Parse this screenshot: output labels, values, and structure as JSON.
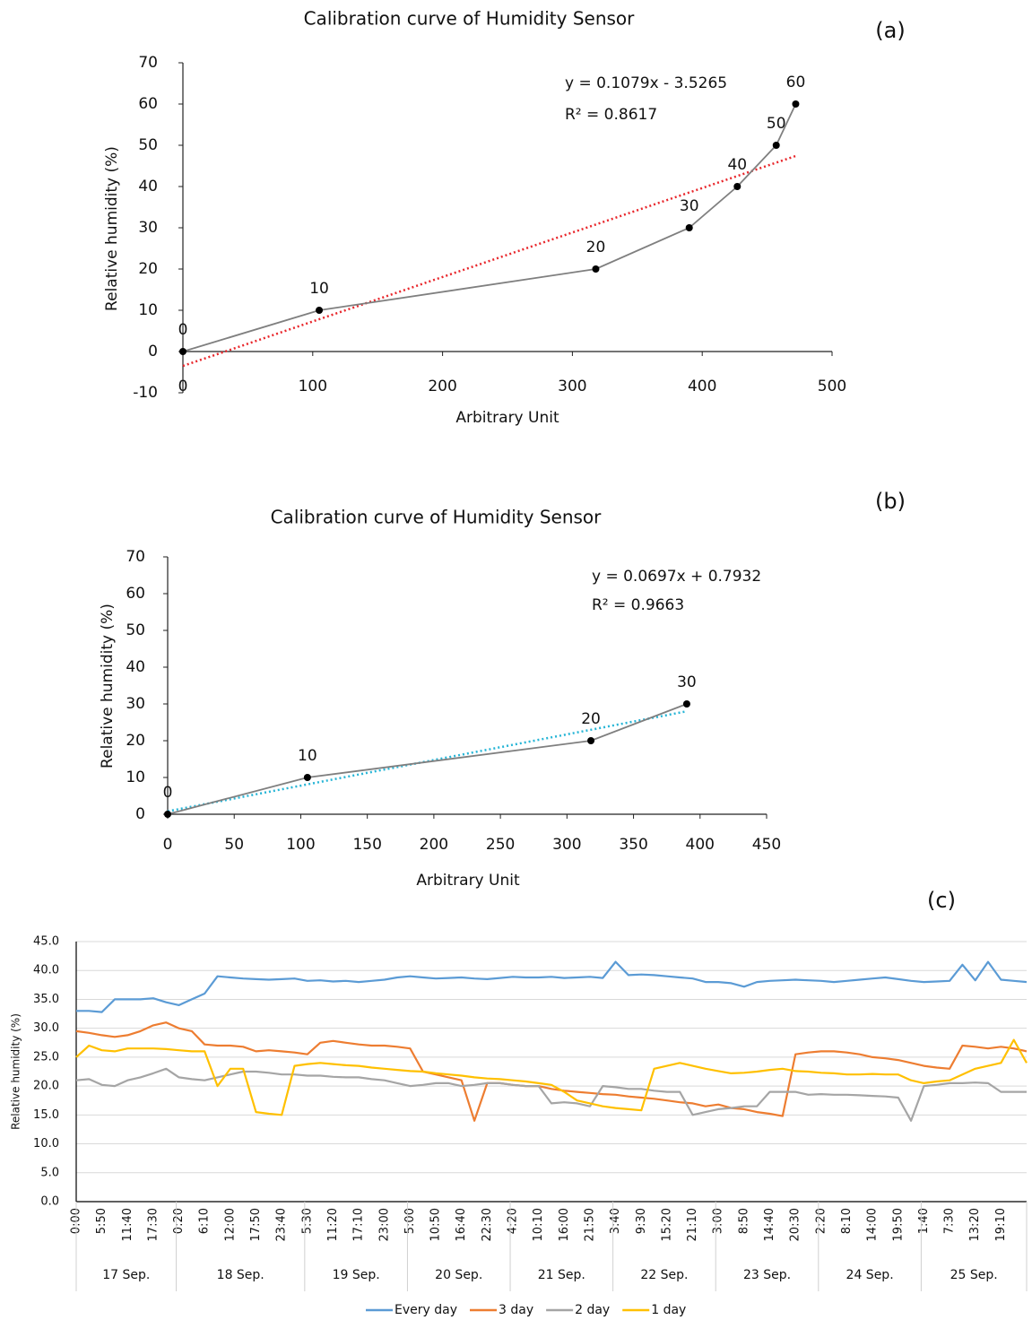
{
  "chart_data": [
    {
      "type": "scatter",
      "title": "Calibration curve of Humidity Sensor",
      "panel_label": "(a)",
      "x_label": "Arbitrary Unit",
      "y_label": "Relative humidity  (%)",
      "annotations": [
        "y = 0.1079x - 3.5265",
        "R² = 0.8617"
      ],
      "x": [
        0,
        105,
        318,
        390,
        427,
        457,
        472
      ],
      "values": [
        0,
        10,
        20,
        30,
        40,
        50,
        60
      ],
      "color": "#7f7f7f",
      "marker_color": "#000000",
      "trendline": {
        "x": [
          0,
          472
        ],
        "values": [
          -3.5,
          47.4
        ],
        "color": "#e8262b"
      },
      "xlim": [
        0,
        500
      ],
      "xticks": [
        0,
        100,
        200,
        300,
        400,
        500
      ],
      "ylim": [
        -10,
        70
      ],
      "yticks": [
        -10,
        0,
        10,
        20,
        30,
        40,
        50,
        60,
        70
      ]
    },
    {
      "type": "scatter",
      "title": "Calibration curve of Humidity Sensor",
      "panel_label": "(b)",
      "x_label": "Arbitrary Unit",
      "y_label": "Relative humidity  (%)",
      "annotations": [
        "y = 0.0697x + 0.7932",
        "R² = 0.9663"
      ],
      "x": [
        0,
        105,
        318,
        390
      ],
      "values": [
        0,
        10,
        20,
        30
      ],
      "color": "#7f7f7f",
      "marker_color": "#000000",
      "trendline": {
        "x": [
          0,
          390
        ],
        "values": [
          0.8,
          28
        ],
        "color": "#27b5d6"
      },
      "xlim": [
        0,
        450
      ],
      "xticks": [
        0,
        50,
        100,
        150,
        200,
        250,
        300,
        350,
        400,
        450
      ],
      "ylim": [
        0,
        70
      ],
      "yticks": [
        0,
        10,
        20,
        30,
        40,
        50,
        60,
        70
      ]
    },
    {
      "type": "line",
      "panel_label": "(c)",
      "y_label": "Relative humidity (%)",
      "categories": [
        "0:00",
        null,
        "5:50",
        null,
        "11:40",
        null,
        "17:30",
        null,
        "0:20",
        null,
        "6:10",
        null,
        "12:00",
        null,
        "17:50",
        null,
        "23:40",
        null,
        "5:30",
        null,
        "11:20",
        null,
        "17:10",
        null,
        "23:00",
        null,
        "5:00",
        null,
        "10:50",
        null,
        "16:40",
        null,
        "22:30",
        null,
        "4:20",
        null,
        "10:10",
        null,
        "16:00",
        null,
        "21:50",
        null,
        "3:40",
        null,
        "9:30",
        null,
        "15:20",
        null,
        "21:10",
        null,
        "3:00",
        null,
        "8:50",
        null,
        "14:40",
        null,
        "20:30",
        null,
        "2:20",
        null,
        "8:10",
        null,
        "14:00",
        null,
        "19:50",
        null,
        "1:40",
        null,
        "7:30",
        null,
        "13:20",
        null,
        "19:10",
        null,
        null
      ],
      "groups": [
        "17 Sep.",
        "18 Sep.",
        "19 Sep.",
        "20 Sep.",
        "21 Sep.",
        "22 Sep.",
        "23 Sep.",
        "24 Sep.",
        "25 Sep."
      ],
      "series": [
        {
          "name": "Every day",
          "color": "#5b9bd5",
          "values": [
            33,
            33,
            32.8,
            35,
            35,
            35,
            35.2,
            34.5,
            34,
            35,
            36,
            39,
            38.8,
            38.6,
            38.5,
            38.4,
            38.5,
            38.6,
            38.2,
            38.3,
            38.1,
            38.2,
            38,
            38.2,
            38.4,
            38.8,
            39,
            38.8,
            38.6,
            38.7,
            38.8,
            38.6,
            38.5,
            38.7,
            38.9,
            38.8,
            38.8,
            38.9,
            38.7,
            38.8,
            38.9,
            38.7,
            41.5,
            39.2,
            39.3,
            39.2,
            39,
            38.8,
            38.6,
            38,
            38,
            37.8,
            37.2,
            38,
            38.2,
            38.3,
            38.4,
            38.3,
            38.2,
            38,
            38.2,
            38.4,
            38.6,
            38.8,
            38.5,
            38.2,
            38,
            38.1,
            38.2,
            41,
            38.3,
            41.5,
            38.4,
            38.2,
            38
          ]
        },
        {
          "name": "3 day",
          "color": "#ed7d31",
          "values": [
            29.5,
            29.2,
            28.8,
            28.5,
            28.8,
            29.5,
            30.5,
            31,
            30,
            29.5,
            27.2,
            27,
            27,
            26.8,
            26,
            26.2,
            26,
            25.8,
            25.5,
            27.5,
            27.8,
            27.5,
            27.2,
            27,
            27,
            26.8,
            26.5,
            22.5,
            22,
            21.5,
            21,
            14,
            20.5,
            20.5,
            20.2,
            20,
            20,
            19.5,
            19.2,
            19,
            18.8,
            18.6,
            18.5,
            18.2,
            18,
            17.8,
            17.5,
            17.2,
            17,
            16.5,
            16.8,
            16.2,
            16,
            15.5,
            15.2,
            14.8,
            25.5,
            25.8,
            26,
            26,
            25.8,
            25.5,
            25,
            24.8,
            24.5,
            24,
            23.5,
            23.2,
            23,
            27,
            26.8,
            26.5,
            26.8,
            26.5,
            26
          ]
        },
        {
          "name": "2 day",
          "color": "#a5a5a5",
          "values": [
            21,
            21.2,
            20.2,
            20,
            21,
            21.5,
            22.2,
            23,
            21.5,
            21.2,
            21,
            21.5,
            22,
            22.5,
            22.5,
            22.3,
            22,
            22,
            21.8,
            21.8,
            21.6,
            21.5,
            21.5,
            21.2,
            21,
            20.5,
            20,
            20.2,
            20.5,
            20.5,
            20,
            20.2,
            20.5,
            20.5,
            20.2,
            20,
            20,
            17,
            17.2,
            17,
            16.5,
            20,
            19.8,
            19.5,
            19.5,
            19.2,
            19,
            19,
            15,
            15.5,
            16,
            16.2,
            16.5,
            16.5,
            19,
            19,
            19,
            18.5,
            18.6,
            18.5,
            18.5,
            18.4,
            18.3,
            18.2,
            18,
            14,
            20,
            20.2,
            20.5,
            20.5,
            20.6,
            20.5,
            19,
            19,
            19
          ]
        },
        {
          "name": "1 day",
          "color": "#ffc000",
          "values": [
            25,
            27,
            26.2,
            26,
            26.5,
            26.5,
            26.5,
            26.4,
            26.2,
            26,
            26,
            20,
            23,
            23,
            15.5,
            15.2,
            15,
            23.5,
            23.8,
            24,
            23.8,
            23.6,
            23.5,
            23.2,
            23,
            22.8,
            22.6,
            22.5,
            22.2,
            22,
            21.8,
            21.5,
            21.3,
            21.2,
            21,
            20.8,
            20.5,
            20.2,
            19,
            17.5,
            17,
            16.5,
            16.2,
            16,
            15.8,
            23,
            23.5,
            24,
            23.5,
            23,
            22.6,
            22.2,
            22.3,
            22.5,
            22.8,
            23,
            22.6,
            22.5,
            22.3,
            22.2,
            22,
            22,
            22.1,
            22,
            22,
            21,
            20.5,
            20.8,
            21,
            22,
            23,
            23.5,
            24,
            28,
            24
          ]
        }
      ],
      "ylim": [
        0,
        45
      ],
      "yticks": [
        {
          "value": 0,
          "label": "0.0"
        },
        {
          "value": 5,
          "label": "5.0"
        },
        {
          "value": 10,
          "label": "10.0"
        },
        {
          "value": 15,
          "label": "15.0"
        },
        {
          "value": 20,
          "label": "20.0"
        },
        {
          "value": 25,
          "label": "25.0"
        },
        {
          "value": 30,
          "label": "30.0"
        },
        {
          "value": 35,
          "label": "35.0"
        },
        {
          "value": 40,
          "label": "40.0"
        },
        {
          "value": 45,
          "label": "45.0"
        }
      ],
      "grid": true,
      "legend": "bottom"
    }
  ]
}
